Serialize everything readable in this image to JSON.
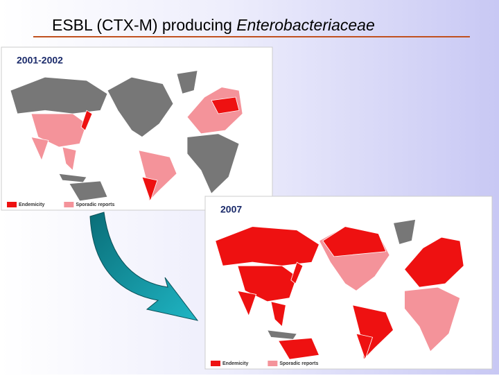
{
  "header": {
    "title": "ESBL (CTX-M) producing ",
    "title_italic": "Enterobacteriaceae"
  },
  "maps": [
    {
      "label": "2001-2002",
      "legend": [
        {
          "name": "Endemicity",
          "color": "#ee1111"
        },
        {
          "name": "Sporadic reports",
          "color": "#f4939a"
        }
      ]
    },
    {
      "label": "2007",
      "legend": [
        {
          "name": "Endemicity",
          "color": "#ee1111"
        },
        {
          "name": "Sporadic reports",
          "color": "#f4939a"
        }
      ]
    }
  ]
}
